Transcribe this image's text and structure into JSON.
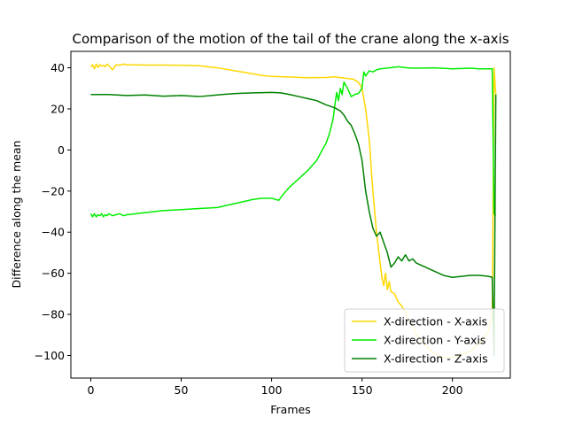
{
  "chart_data": {
    "type": "line",
    "title": "Comparison of the motion of the tail of the crane along the x-axis",
    "xlabel": "Frames",
    "ylabel": "Difference along the mean",
    "xlim": [
      -11,
      232
    ],
    "ylim": [
      -111,
      48
    ],
    "xticks": [
      0,
      50,
      100,
      150,
      200
    ],
    "yticks": [
      -100,
      -80,
      -60,
      -40,
      -20,
      0,
      20,
      40
    ],
    "grid": false,
    "legend_position": "lower-right",
    "series": [
      {
        "name": "X-direction - X-axis",
        "color": "#FFD700",
        "x": [
          0,
          1,
          2,
          3,
          4,
          5,
          6,
          7,
          8,
          9,
          10,
          12,
          14,
          16,
          18,
          20,
          30,
          40,
          50,
          60,
          70,
          80,
          90,
          95,
          100,
          110,
          120,
          130,
          135,
          140,
          145,
          148,
          150,
          152,
          154,
          156,
          158,
          160,
          161,
          162,
          163,
          164,
          165,
          166,
          168,
          170,
          172,
          174,
          176,
          178,
          180,
          185,
          190,
          195,
          200,
          210,
          215,
          220,
          222,
          223,
          224
        ],
        "y": [
          40.5,
          41.5,
          39.5,
          41.8,
          40.2,
          41.5,
          40.8,
          41.2,
          40.5,
          41.8,
          41.0,
          39.0,
          41.5,
          41.2,
          41.8,
          41.5,
          41.3,
          41.3,
          41.2,
          41.0,
          40.0,
          38.5,
          37.0,
          36.2,
          35.8,
          35.5,
          35.2,
          35.3,
          35.6,
          35.0,
          34.5,
          33.0,
          30.0,
          20.0,
          5.0,
          -20.0,
          -40.0,
          -55.0,
          -62.0,
          -66.0,
          -60.0,
          -68.0,
          -64.0,
          -69.0,
          -70.0,
          -74.0,
          -76.0,
          -79.0,
          -83.0,
          -86.0,
          -90.0,
          -95.0,
          -99.0,
          -101.0,
          -101.0,
          -98.0,
          -94.0,
          -88.0,
          -80.0,
          40.0,
          27.0
        ]
      },
      {
        "name": "X-direction - Y-axis",
        "color": "#00EE00",
        "x": [
          0,
          1,
          2,
          3,
          4,
          5,
          6,
          7,
          8,
          9,
          10,
          12,
          14,
          16,
          18,
          20,
          25,
          30,
          35,
          40,
          50,
          60,
          70,
          80,
          90,
          95,
          100,
          104,
          106,
          108,
          110,
          115,
          120,
          125,
          128,
          130,
          132,
          134,
          135,
          136,
          137,
          138,
          139,
          140,
          142,
          144,
          146,
          148,
          150,
          151,
          152,
          154,
          156,
          158,
          160,
          165,
          170,
          175,
          180,
          190,
          200,
          210,
          215,
          220,
          222,
          223,
          224
        ],
        "y": [
          -31.0,
          -32.5,
          -31.0,
          -32.5,
          -31.5,
          -32.0,
          -31.0,
          -32.5,
          -31.5,
          -32.0,
          -31.0,
          -32.0,
          -31.5,
          -31.0,
          -32.0,
          -31.5,
          -31.0,
          -30.5,
          -30.0,
          -29.5,
          -29.0,
          -28.5,
          -28.0,
          -26.0,
          -24.0,
          -23.5,
          -23.5,
          -24.5,
          -22.0,
          -20.0,
          -18.0,
          -14.0,
          -10.0,
          -5.0,
          0.0,
          3.0,
          8.0,
          15.0,
          22.0,
          28.0,
          24.0,
          30.0,
          27.0,
          33.0,
          30.0,
          26.0,
          27.0,
          27.5,
          30.0,
          38.0,
          36.0,
          38.5,
          38.0,
          39.0,
          39.5,
          40.0,
          40.5,
          40.0,
          39.8,
          40.0,
          39.5,
          39.8,
          39.5,
          39.5,
          39.5,
          -31.0,
          -32.0
        ]
      },
      {
        "name": "X-direction - Z-axis",
        "color": "#008000",
        "x": [
          0,
          10,
          20,
          30,
          40,
          50,
          60,
          70,
          80,
          90,
          100,
          105,
          110,
          115,
          120,
          125,
          130,
          135,
          138,
          140,
          142,
          144,
          146,
          148,
          150,
          152,
          154,
          156,
          158,
          160,
          162,
          164,
          166,
          168,
          170,
          172,
          174,
          176,
          178,
          180,
          185,
          190,
          195,
          200,
          205,
          210,
          215,
          220,
          222,
          223,
          224
        ],
        "y": [
          27.0,
          27.0,
          26.5,
          26.8,
          26.2,
          26.5,
          26.0,
          26.8,
          27.5,
          27.8,
          28.0,
          27.8,
          27.0,
          26.0,
          25.0,
          24.0,
          22.0,
          20.5,
          19.0,
          17.0,
          14.0,
          12.0,
          8.0,
          3.0,
          -5.0,
          -20.0,
          -30.0,
          -38.0,
          -42.0,
          -40.0,
          -45.0,
          -50.0,
          -57.0,
          -55.0,
          -52.0,
          -54.0,
          -51.0,
          -54.0,
          -53.0,
          -55.0,
          -57.0,
          -59.0,
          -61.0,
          -62.0,
          -61.5,
          -61.0,
          -61.0,
          -61.5,
          -62.0,
          -100.0,
          27.0
        ]
      }
    ]
  }
}
